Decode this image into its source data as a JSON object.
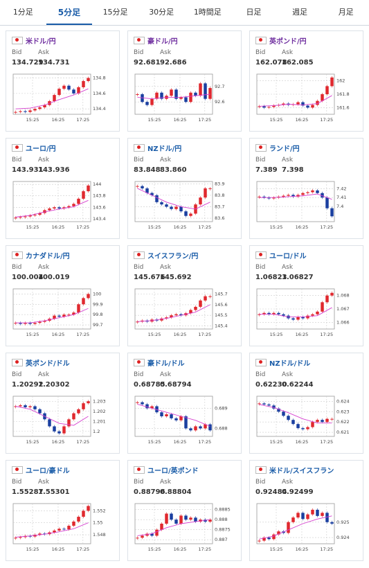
{
  "tabs": [
    {
      "label": "1分足"
    },
    {
      "label": "5分足",
      "active": true
    },
    {
      "label": "15分足"
    },
    {
      "label": "30分足"
    },
    {
      "label": "1時間足"
    },
    {
      "label": "日足"
    },
    {
      "label": "週足"
    },
    {
      "label": "月足"
    }
  ],
  "labels": {
    "bid": "Bid",
    "ask": "Ask"
  },
  "cards": [
    {
      "name": "米ドル/円",
      "visited": true,
      "bid": "134.729",
      "ask": "134.731",
      "chart": {
        "ylim": [
          134.33,
          134.85
        ],
        "yticks": [
          134.8,
          134.6,
          134.4
        ],
        "xticks": [
          "15:25",
          "16:25",
          "17:25"
        ],
        "close": [
          134.36,
          134.37,
          134.36,
          134.38,
          134.4,
          134.42,
          134.45,
          134.5,
          134.58,
          134.66,
          134.7,
          134.65,
          134.6,
          134.68,
          134.76,
          134.8
        ],
        "ma": [
          134.4,
          134.41,
          134.45,
          134.52,
          134.58,
          134.66
        ]
      }
    },
    {
      "name": "豪ドル/円",
      "visited": true,
      "bid": "92.681",
      "ask": "92.686",
      "chart": {
        "ylim": [
          92.52,
          92.78
        ],
        "yticks": [
          92.7,
          92.6
        ],
        "xticks": [
          "15:25",
          "16:25",
          "17:25"
        ],
        "close": [
          92.65,
          92.6,
          92.58,
          92.62,
          92.66,
          92.62,
          92.64,
          92.68,
          92.62,
          92.63,
          92.6,
          92.66,
          92.64,
          92.72,
          92.62,
          92.69
        ],
        "ma": [
          92.63,
          92.62,
          92.63,
          92.63,
          92.64,
          92.65
        ]
      }
    },
    {
      "name": "英ポンド/円",
      "visited": true,
      "bid": "162.078",
      "ask": "162.085",
      "chart": {
        "ylim": [
          161.5,
          162.1
        ],
        "yticks": [
          162,
          161.8,
          161.6
        ],
        "xticks": [
          "15:25",
          "16:25",
          "17:25"
        ],
        "close": [
          161.62,
          161.6,
          161.61,
          161.63,
          161.64,
          161.66,
          161.64,
          161.65,
          161.68,
          161.63,
          161.6,
          161.64,
          161.7,
          161.8,
          161.92,
          162.05
        ],
        "ma": [
          161.62,
          161.63,
          161.65,
          161.64,
          161.66,
          161.78
        ]
      }
    },
    {
      "name": "ユーロ/円",
      "bid": "143.931",
      "ask": "143.936",
      "chart": {
        "ylim": [
          143.35,
          144.05
        ],
        "yticks": [
          144,
          143.8,
          143.6,
          143.4
        ],
        "xticks": [
          "15:25",
          "16:25",
          "17:25"
        ],
        "close": [
          143.42,
          143.43,
          143.44,
          143.46,
          143.47,
          143.5,
          143.55,
          143.58,
          143.6,
          143.58,
          143.6,
          143.62,
          143.66,
          143.75,
          143.88,
          143.98
        ],
        "ma": [
          143.43,
          143.46,
          143.52,
          143.57,
          143.61,
          143.72
        ]
      }
    },
    {
      "name": "NZドル/円",
      "bid": "83.848",
      "ask": "83.860",
      "chart": {
        "ylim": [
          83.57,
          83.92
        ],
        "yticks": [
          83.9,
          83.8,
          83.7,
          83.6
        ],
        "xticks": [
          "15:25",
          "16:25",
          "17:25"
        ],
        "close": [
          83.88,
          83.86,
          83.82,
          83.8,
          83.74,
          83.72,
          83.7,
          83.68,
          83.7,
          83.66,
          83.62,
          83.64,
          83.72,
          83.78,
          83.86,
          83.86
        ],
        "ma": [
          83.86,
          83.8,
          83.74,
          83.7,
          83.68,
          83.74
        ]
      }
    },
    {
      "name": "ランド/円",
      "bid": "7.389",
      "ask": "7.398",
      "chart": {
        "ylim": [
          7.383,
          7.428
        ],
        "yticks": [
          7.42,
          7.41,
          7.4
        ],
        "xticks": [
          "15:25",
          "16:25",
          "17:25"
        ],
        "close": [
          7.411,
          7.41,
          7.409,
          7.41,
          7.411,
          7.412,
          7.413,
          7.411,
          7.413,
          7.415,
          7.416,
          7.418,
          7.415,
          7.41,
          7.398,
          7.389
        ],
        "ma": [
          7.41,
          7.41,
          7.411,
          7.412,
          7.414,
          7.408
        ]
      }
    },
    {
      "name": "カナダドル/円",
      "bid": "100.004",
      "ask": "100.019",
      "chart": {
        "ylim": [
          99.66,
          100.05
        ],
        "yticks": [
          100,
          99.9,
          99.8,
          99.7
        ],
        "xticks": [
          "15:25",
          "16:25",
          "17:25"
        ],
        "close": [
          99.72,
          99.71,
          99.72,
          99.71,
          99.72,
          99.73,
          99.74,
          99.76,
          99.79,
          99.78,
          99.8,
          99.8,
          99.82,
          99.9,
          99.96,
          100
        ],
        "ma": [
          99.72,
          99.72,
          99.74,
          99.77,
          99.8,
          99.86
        ]
      }
    },
    {
      "name": "スイスフラン/円",
      "bid": "145.676",
      "ask": "145.692",
      "chart": {
        "ylim": [
          145.37,
          145.75
        ],
        "yticks": [
          145.7,
          145.6,
          145.5,
          145.4
        ],
        "xticks": [
          "15:25",
          "16:25",
          "17:25"
        ],
        "close": [
          145.44,
          145.45,
          145.44,
          145.46,
          145.45,
          145.47,
          145.48,
          145.5,
          145.51,
          145.5,
          145.52,
          145.55,
          145.58,
          145.64,
          145.68,
          145.68
        ],
        "ma": [
          145.44,
          145.45,
          145.47,
          145.5,
          145.53,
          145.6
        ]
      }
    },
    {
      "name": "ユーロ/ドル",
      "bid": "1.06823",
      "ask": "1.06827",
      "chart": {
        "ylim": [
          1.0655,
          1.0685
        ],
        "yticks": [
          1.068,
          1.067,
          1.066
        ],
        "xticks": [
          "15:25",
          "16:25",
          "17:25"
        ],
        "close": [
          1.0666,
          1.0667,
          1.0666,
          1.0667,
          1.0666,
          1.0665,
          1.0663,
          1.0662,
          1.0664,
          1.0663,
          1.0665,
          1.0666,
          1.0668,
          1.0675,
          1.068,
          1.0682
        ],
        "ma": [
          1.0666,
          1.0666,
          1.0664,
          1.0664,
          1.0665,
          1.0671
        ]
      }
    },
    {
      "name": "英ポンド/ドル",
      "bid": "1.20292",
      "ask": "1.20302",
      "chart": {
        "ylim": [
          1.1995,
          1.2035
        ],
        "yticks": [
          1.203,
          1.202,
          1.201,
          1.2
        ],
        "xticks": [
          "15:25",
          "16:25",
          "17:25"
        ],
        "close": [
          1.2025,
          1.2026,
          1.2024,
          1.2025,
          1.2022,
          1.2018,
          1.2012,
          1.2005,
          1.2,
          1.1998,
          1.2005,
          1.2012,
          1.2018,
          1.2022,
          1.2028,
          1.203
        ],
        "ma": [
          1.2025,
          1.2022,
          1.2015,
          1.2008,
          1.2006,
          1.2015
        ]
      }
    },
    {
      "name": "豪ドル/ドル",
      "bid": "0.68785",
      "ask": "0.68794",
      "chart": {
        "ylim": [
          0.6876,
          0.6896
        ],
        "yticks": [
          0.689,
          0.688
        ],
        "xticks": [
          "15:25",
          "16:25",
          "17:25"
        ],
        "close": [
          0.6893,
          0.6892,
          0.689,
          0.6891,
          0.6888,
          0.6886,
          0.6887,
          0.6885,
          0.6884,
          0.6886,
          0.688,
          0.6879,
          0.6881,
          0.688,
          0.6882,
          0.6879
        ],
        "ma": [
          0.6892,
          0.689,
          0.6888,
          0.6886,
          0.6884,
          0.6881
        ]
      }
    },
    {
      "name": "NZドル/ドル",
      "bid": "0.62230",
      "ask": "0.62244",
      "chart": {
        "ylim": [
          0.6206,
          0.6245
        ],
        "yticks": [
          0.624,
          0.623,
          0.622,
          0.621
        ],
        "xticks": [
          "15:25",
          "16:25",
          "17:25"
        ],
        "close": [
          0.6238,
          0.6237,
          0.6236,
          0.6233,
          0.623,
          0.6226,
          0.6222,
          0.6218,
          0.6214,
          0.6213,
          0.6215,
          0.622,
          0.6222,
          0.622,
          0.6223,
          0.6223
        ],
        "ma": [
          0.6237,
          0.6234,
          0.6229,
          0.6223,
          0.6219,
          0.6219
        ]
      }
    },
    {
      "name": "ユーロ/豪ドル",
      "bid": "1.55287",
      "ask": "1.55301",
      "chart": {
        "ylim": [
          1.5465,
          1.5532
        ],
        "yticks": [
          1.552,
          1.55,
          1.548
        ],
        "xticks": [
          "15:25",
          "16:25",
          "17:25"
        ],
        "close": [
          1.5475,
          1.5476,
          1.5478,
          1.5477,
          1.548,
          1.5482,
          1.5481,
          1.5484,
          1.5487,
          1.549,
          1.5489,
          1.5495,
          1.5502,
          1.551,
          1.552,
          1.5528
        ],
        "ma": [
          1.5476,
          1.5478,
          1.5481,
          1.5485,
          1.549,
          1.55
        ]
      }
    },
    {
      "name": "ユーロ/英ポンド",
      "bid": "0.88796",
      "ask": "0.88804",
      "chart": {
        "ylim": [
          0.8868,
          0.8888
        ],
        "yticks": [
          0.8885,
          0.888,
          0.8875,
          0.887
        ],
        "xticks": [
          "15:25",
          "16:25",
          "17:25"
        ],
        "close": [
          0.8871,
          0.8872,
          0.8873,
          0.8872,
          0.8875,
          0.8878,
          0.8883,
          0.888,
          0.8878,
          0.8882,
          0.888,
          0.8881,
          0.8879,
          0.888,
          0.8879,
          0.888
        ],
        "ma": [
          0.8872,
          0.8873,
          0.8876,
          0.8878,
          0.8879,
          0.888
        ]
      }
    },
    {
      "name": "米ドル/スイスフラン",
      "bid": "0.92484",
      "ask": "0.92499",
      "chart": {
        "ylim": [
          0.9236,
          0.9262
        ],
        "yticks": [
          0.925,
          0.924
        ],
        "xticks": [
          "15:25",
          "16:25",
          "17:25"
        ],
        "close": [
          0.9238,
          0.924,
          0.9239,
          0.9242,
          0.9244,
          0.9243,
          0.925,
          0.9253,
          0.9256,
          0.9252,
          0.9255,
          0.9258,
          0.9254,
          0.9256,
          0.925,
          0.9249
        ],
        "ma": [
          0.9239,
          0.9241,
          0.9245,
          0.9249,
          0.9252,
          0.9254
        ]
      }
    }
  ]
}
